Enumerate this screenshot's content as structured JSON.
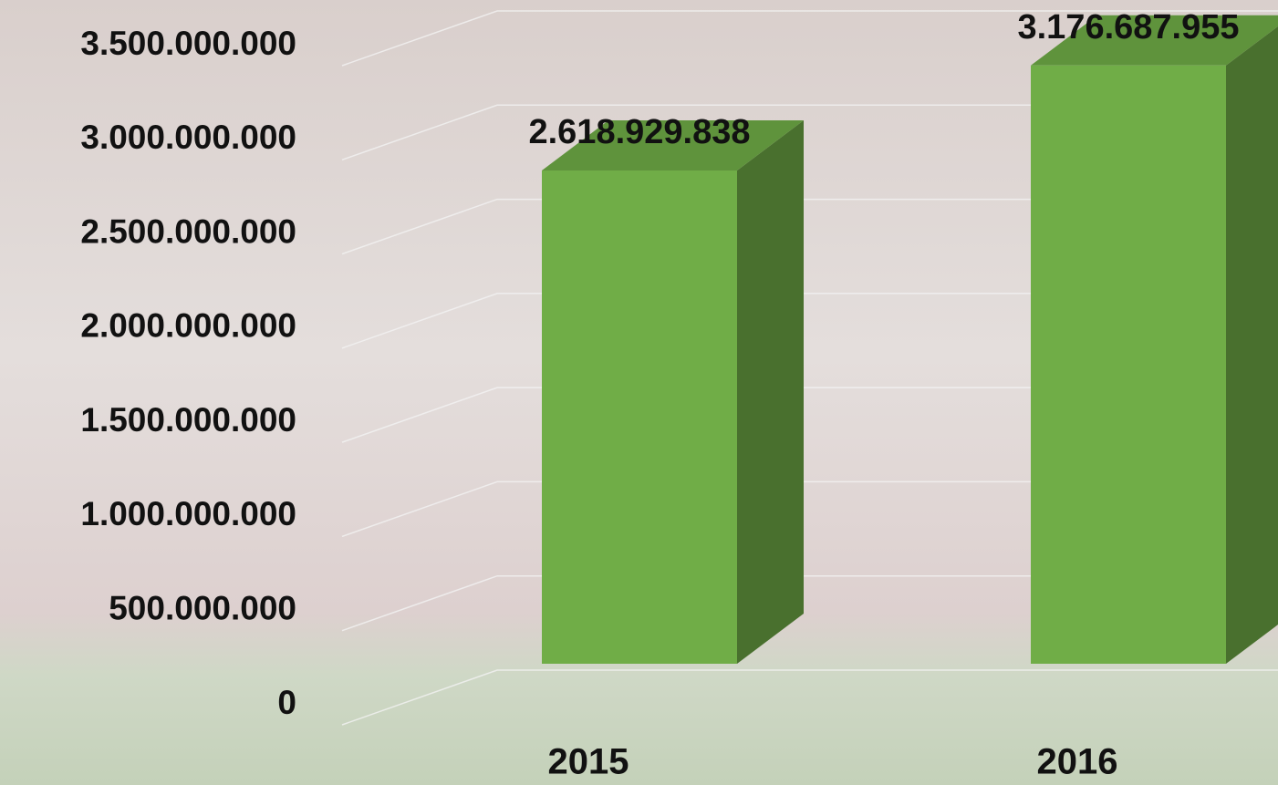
{
  "chart_data": {
    "type": "bar3d",
    "categories": [
      "2015",
      "2016"
    ],
    "values": [
      2618929838,
      3176687955
    ],
    "value_labels": [
      "2.618.929.838",
      "3.176.687.955"
    ],
    "color": "#70ad47",
    "ylim": [
      0,
      3500000000
    ],
    "yticks": [
      0,
      {
        "value": 500000000,
        "label": "500.000.000"
      },
      {
        "value": 1000000000,
        "label": "1.000.000.000"
      },
      {
        "value": 1500000000,
        "label": "1.500.000.000"
      },
      {
        "value": 2000000000,
        "label": "2.000.000.000"
      },
      {
        "value": 2500000000,
        "label": "2.500.000.000"
      },
      {
        "value": 3000000000,
        "label": "3.000.000.000"
      },
      {
        "value": 3500000000,
        "label": "3.500.000.000"
      }
    ],
    "grid": true
  }
}
